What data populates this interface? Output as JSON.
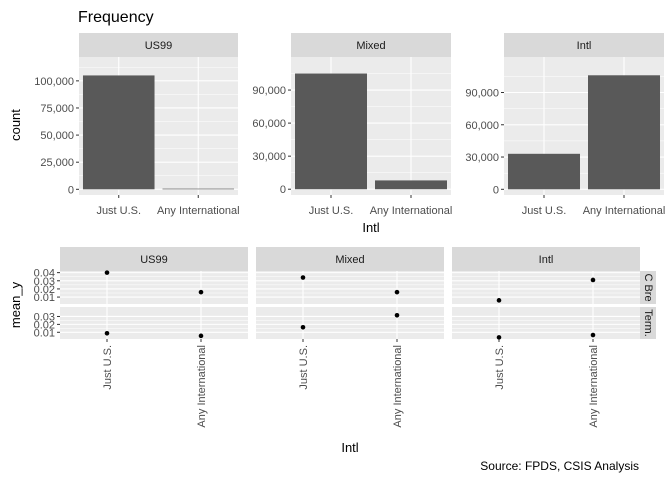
{
  "caption": "Source: FPDS, CSIS Analysis",
  "colors": {
    "panel_bg": "#ebebeb",
    "grid": "#ffffff",
    "strip_bg": "#d9d9d9",
    "bar": "#595959",
    "point": "#000000"
  },
  "chart_data": [
    {
      "type": "bar",
      "title": "Frequency",
      "xlabel": "Intl",
      "ylabel": "count",
      "categories": [
        "Just U.S.",
        "Any International"
      ],
      "facets": [
        {
          "name": "US99",
          "values": [
            105000,
            600
          ],
          "ylim": [
            -5250,
            122000
          ],
          "ticks": [
            0,
            25000,
            50000,
            75000,
            100000
          ],
          "tick_labels": [
            "0",
            "25,000",
            "50,000",
            "75,000",
            "100,000"
          ]
        },
        {
          "name": "Mixed",
          "values": [
            105000,
            8000
          ],
          "ylim": [
            -5250,
            120000
          ],
          "ticks": [
            0,
            30000,
            60000,
            90000
          ],
          "tick_labels": [
            "0",
            "30,000",
            "60,000",
            "90,000"
          ]
        },
        {
          "name": "Intl",
          "values": [
            33000,
            106000
          ],
          "ylim": [
            -5300,
            123000
          ],
          "ticks": [
            0,
            30000,
            60000,
            90000
          ],
          "tick_labels": [
            "0",
            "30,000",
            "60,000",
            "90,000"
          ]
        }
      ]
    },
    {
      "type": "scatter",
      "xlabel": "Intl",
      "ylabel": "mean_y",
      "categories": [
        "Just U.S.",
        "Any International"
      ],
      "column_facets": [
        "US99",
        "Mixed",
        "Intl"
      ],
      "row_facets": [
        {
          "name": "C Bre",
          "ylim": [
            0.0015,
            0.042
          ],
          "ticks": [
            0.01,
            0.02,
            0.03,
            0.04
          ],
          "tick_labels": [
            "0.01",
            "0.02",
            "0.03",
            "0.04"
          ],
          "values": [
            [
              0.04,
              0.016
            ],
            [
              0.034,
              0.016
            ],
            [
              0.006,
              0.031
            ]
          ]
        },
        {
          "name": "Term.",
          "ylim": [
            0.0015,
            0.042
          ],
          "ticks": [
            0.01,
            0.02,
            0.03
          ],
          "tick_labels": [
            "0.01",
            "0.02",
            "0.03"
          ],
          "values": [
            [
              0.0087,
              0.0055
            ],
            [
              0.0163,
              0.0315
            ],
            [
              0.0035,
              0.0065
            ]
          ]
        }
      ]
    }
  ]
}
